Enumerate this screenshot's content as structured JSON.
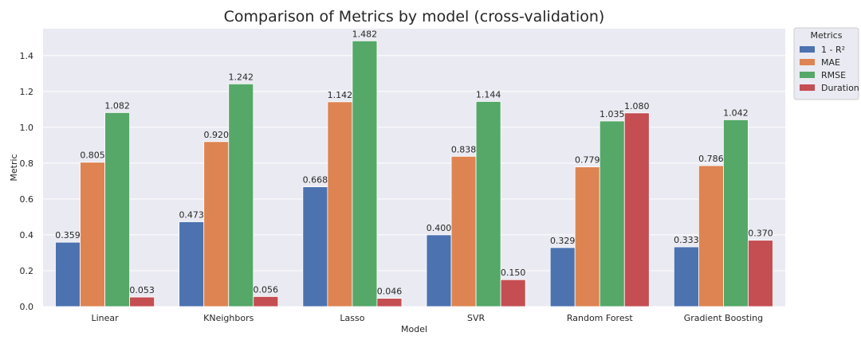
{
  "chart_data": {
    "type": "bar",
    "title": "Comparison of Metrics by model (cross-validation)",
    "xlabel": "Model",
    "ylabel": "Metric",
    "ylim": [
      0,
      1.55
    ],
    "yticks": [
      "0.0",
      "0.2",
      "0.4",
      "0.6",
      "0.8",
      "1.0",
      "1.2",
      "1.4"
    ],
    "grid": true,
    "legend_title": "Metrics",
    "legend_position": "outside-top-right",
    "categories": [
      "Linear",
      "KNeighbors",
      "Lasso",
      "SVR",
      "Random Forest",
      "Gradient Boosting"
    ],
    "series": [
      {
        "name": "1 - R²",
        "color": "#4c72b0",
        "values": [
          0.359,
          0.473,
          0.668,
          0.4,
          0.329,
          0.333
        ],
        "labels": [
          "0.359",
          "0.473",
          "0.668",
          "0.400",
          "0.329",
          "0.333"
        ]
      },
      {
        "name": "MAE",
        "color": "#dd8452",
        "values": [
          0.805,
          0.92,
          1.142,
          0.838,
          0.779,
          0.786
        ],
        "labels": [
          "0.805",
          "0.920",
          "1.142",
          "0.838",
          "0.779",
          "0.786"
        ]
      },
      {
        "name": "RMSE",
        "color": "#55a868",
        "values": [
          1.082,
          1.242,
          1.482,
          1.144,
          1.035,
          1.042
        ],
        "labels": [
          "1.082",
          "1.242",
          "1.482",
          "1.144",
          "1.035",
          "1.042"
        ]
      },
      {
        "name": "Duration",
        "color": "#c44e52",
        "values": [
          0.053,
          0.056,
          0.046,
          0.15,
          1.08,
          0.37
        ],
        "labels": [
          "0.053",
          "0.056",
          "0.046",
          "0.150",
          "1.080",
          "0.370"
        ]
      }
    ]
  },
  "colors": {
    "plot_background": "#eaeaf2",
    "grid": "#ffffff",
    "text": "#262626"
  }
}
